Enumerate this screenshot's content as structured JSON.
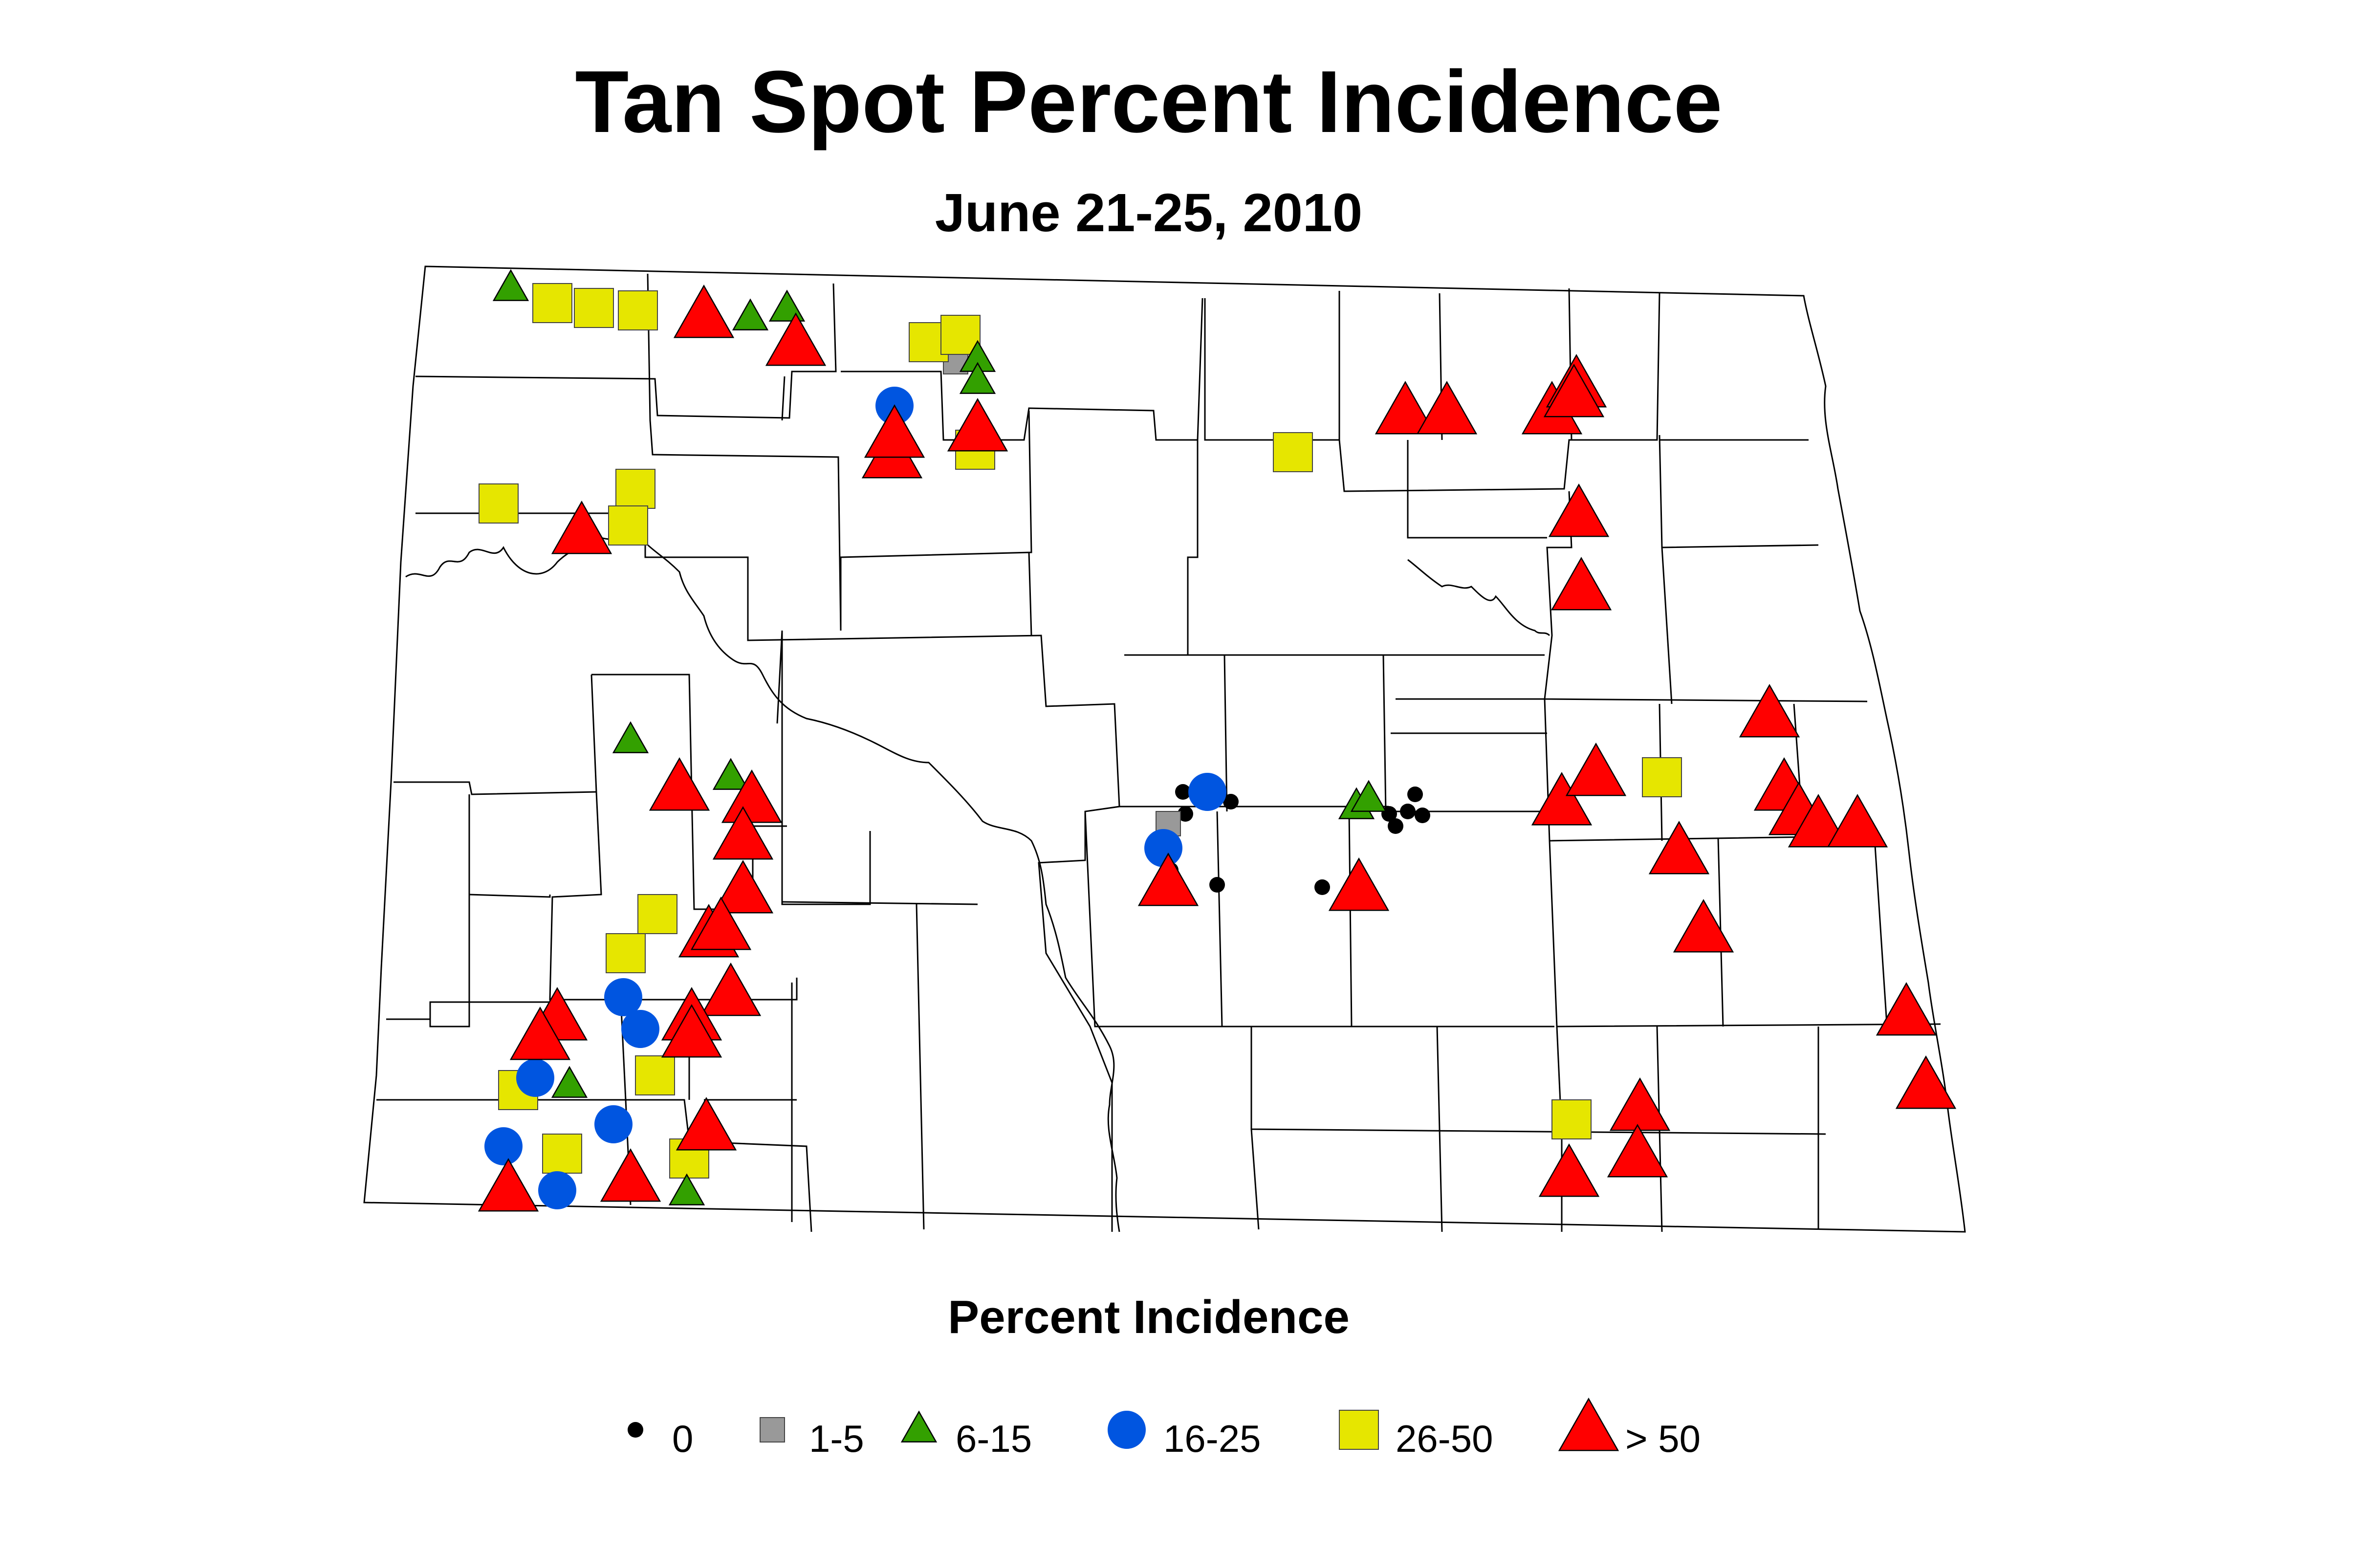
{
  "title": "Tan Spot Percent Incidence",
  "subtitle": "June 21-25, 2010",
  "legend": {
    "title": "Percent Incidence",
    "items": [
      {
        "key": "zero",
        "label": "0",
        "shape": "dot",
        "color": "#000000"
      },
      {
        "key": "low",
        "label": "1-5",
        "shape": "square",
        "color": "#999999"
      },
      {
        "key": "mid",
        "label": "6-15",
        "shape": "triangle",
        "color": "#33A000"
      },
      {
        "key": "midhigh",
        "label": "16-25",
        "shape": "circle",
        "color": "#0055E0"
      },
      {
        "key": "high",
        "label": "26-50",
        "shape": "square",
        "color": "#E6E600"
      },
      {
        "key": "veryhigh",
        "label": "> 50",
        "shape": "triangle",
        "color": "#FF0000"
      }
    ]
  },
  "markers": {
    "zero": [
      [
        2420,
        1620
      ],
      [
        2425,
        1665
      ],
      [
        2518,
        1640
      ],
      [
        2490,
        1810
      ],
      [
        2705,
        1815
      ],
      [
        2842,
        1665
      ],
      [
        2855,
        1690
      ],
      [
        2880,
        1660
      ],
      [
        2895,
        1625
      ],
      [
        2910,
        1668
      ],
      [
        2395,
        1780
      ]
    ],
    "low": [
      [
        1955,
        740
      ],
      [
        2390,
        1685
      ]
    ],
    "mid": [
      [
        1045,
        590
      ],
      [
        1535,
        650
      ],
      [
        1610,
        632
      ],
      [
        2000,
        735
      ],
      [
        2000,
        780
      ],
      [
        1290,
        1515
      ],
      [
        1495,
        1590
      ],
      [
        2775,
        1650
      ],
      [
        2800,
        1635
      ],
      [
        1165,
        2220
      ],
      [
        1405,
        2440
      ]
    ],
    "midhigh": [
      [
        1830,
        830
      ],
      [
        2470,
        1620
      ],
      [
        2380,
        1735
      ],
      [
        1275,
        2040
      ],
      [
        1310,
        2105
      ],
      [
        1095,
        2205
      ],
      [
        1030,
        2345
      ],
      [
        1255,
        2300
      ],
      [
        1140,
        2435
      ]
    ],
    "high": [
      [
        1130,
        620
      ],
      [
        1215,
        630
      ],
      [
        1305,
        635
      ],
      [
        1900,
        700
      ],
      [
        1965,
        685
      ],
      [
        1995,
        920
      ],
      [
        1020,
        1030
      ],
      [
        1300,
        1000
      ],
      [
        1285,
        1075
      ],
      [
        2645,
        925
      ],
      [
        3400,
        1590
      ],
      [
        1345,
        1870
      ],
      [
        1280,
        1950
      ],
      [
        1340,
        2200
      ],
      [
        1060,
        2230
      ],
      [
        1150,
        2360
      ],
      [
        1410,
        2370
      ],
      [
        3215,
        2290
      ]
    ],
    "veryhigh": [
      [
        1440,
        648
      ],
      [
        1628,
        705
      ],
      [
        1825,
        935
      ],
      [
        1190,
        1090
      ],
      [
        1830,
        893
      ],
      [
        2000,
        880
      ],
      [
        2875,
        845
      ],
      [
        2960,
        845
      ],
      [
        3175,
        845
      ],
      [
        3225,
        790
      ],
      [
        3220,
        810
      ],
      [
        3230,
        1055
      ],
      [
        3235,
        1205
      ],
      [
        1390,
        1615
      ],
      [
        1538,
        1640
      ],
      [
        1520,
        1715
      ],
      [
        1520,
        1825
      ],
      [
        1450,
        1915
      ],
      [
        1475,
        1900
      ],
      [
        1495,
        2035
      ],
      [
        1415,
        2085
      ],
      [
        1415,
        2120
      ],
      [
        1140,
        2085
      ],
      [
        1105,
        2125
      ],
      [
        1445,
        2310
      ],
      [
        1040,
        2435
      ],
      [
        1290,
        2415
      ],
      [
        2390,
        1810
      ],
      [
        2780,
        1820
      ],
      [
        3195,
        1645
      ],
      [
        3265,
        1585
      ],
      [
        3435,
        1745
      ],
      [
        3485,
        1905
      ],
      [
        3620,
        1465
      ],
      [
        3650,
        1615
      ],
      [
        3680,
        1665
      ],
      [
        3720,
        1690
      ],
      [
        3800,
        1690
      ],
      [
        3900,
        2075
      ],
      [
        3940,
        2225
      ],
      [
        3355,
        2270
      ],
      [
        3350,
        2365
      ],
      [
        3210,
        2405
      ]
    ]
  }
}
